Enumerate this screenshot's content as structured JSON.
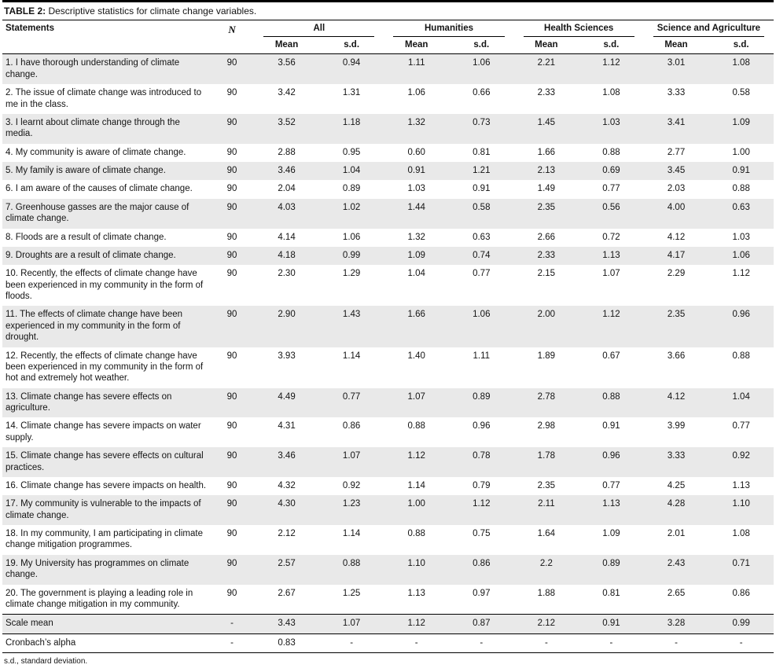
{
  "table": {
    "title_label": "TABLE 2:",
    "title_text": " Descriptive statistics for climate change variables.",
    "col_statements": "Statements",
    "col_n": "N",
    "groups": [
      "All",
      "Humanities",
      "Health Sciences",
      "Science and Agriculture"
    ],
    "sub_mean": "Mean",
    "sub_sd": "s.d.",
    "rows": [
      {
        "statement": "1. I have thorough understanding of climate change.",
        "n": "90",
        "values": [
          "3.56",
          "0.94",
          "1.11",
          "1.06",
          "2.21",
          "1.12",
          "3.01",
          "1.08"
        ]
      },
      {
        "statement": "2. The issue of climate change was introduced to me in the class.",
        "n": "90",
        "values": [
          "3.42",
          "1.31",
          "1.06",
          "0.66",
          "2.33",
          "1.08",
          "3.33",
          "0.58"
        ]
      },
      {
        "statement": "3. I learnt about climate change through the media.",
        "n": "90",
        "values": [
          "3.52",
          "1.18",
          "1.32",
          "0.73",
          "1.45",
          "1.03",
          "3.41",
          "1.09"
        ]
      },
      {
        "statement": "4. My community is aware of climate change.",
        "n": "90",
        "values": [
          "2.88",
          "0.95",
          "0.60",
          "0.81",
          "1.66",
          "0.88",
          "2.77",
          "1.00"
        ]
      },
      {
        "statement": "5. My family is aware of climate change.",
        "n": "90",
        "values": [
          "3.46",
          "1.04",
          "0.91",
          "1.21",
          "2.13",
          "0.69",
          "3.45",
          "0.91"
        ]
      },
      {
        "statement": "6. I am aware of the causes of climate change.",
        "n": "90",
        "values": [
          "2.04",
          "0.89",
          "1.03",
          "0.91",
          "1.49",
          "0.77",
          "2.03",
          "0.88"
        ]
      },
      {
        "statement": "7. Greenhouse gasses are the major cause of climate change.",
        "n": "90",
        "values": [
          "4.03",
          "1.02",
          "1.44",
          "0.58",
          "2.35",
          "0.56",
          "4.00",
          "0.63"
        ]
      },
      {
        "statement": "8. Floods are a result of climate change.",
        "n": "90",
        "values": [
          "4.14",
          "1.06",
          "1.32",
          "0.63",
          "2.66",
          "0.72",
          "4.12",
          "1.03"
        ]
      },
      {
        "statement": "9. Droughts are a result of climate change.",
        "n": "90",
        "values": [
          "4.18",
          "0.99",
          "1.09",
          "0.74",
          "2.33",
          "1.13",
          "4.17",
          "1.06"
        ]
      },
      {
        "statement": "10. Recently, the effects of climate change have been experienced in my community in the form of floods.",
        "n": "90",
        "values": [
          "2.30",
          "1.29",
          "1.04",
          "0.77",
          "2.15",
          "1.07",
          "2.29",
          "1.12"
        ]
      },
      {
        "statement": "11. The effects of climate change have been experienced in my community in the form of drought.",
        "n": "90",
        "values": [
          "2.90",
          "1.43",
          "1.66",
          "1.06",
          "2.00",
          "1.12",
          "2.35",
          "0.96"
        ]
      },
      {
        "statement": "12. Recently, the effects of climate change have been experienced in my community in the form of hot and extremely hot weather.",
        "n": "90",
        "values": [
          "3.93",
          "1.14",
          "1.40",
          "1.11",
          "1.89",
          "0.67",
          "3.66",
          "0.88"
        ]
      },
      {
        "statement": "13. Climate change has severe effects on agriculture.",
        "n": "90",
        "values": [
          "4.49",
          "0.77",
          "1.07",
          "0.89",
          "2.78",
          "0.88",
          "4.12",
          "1.04"
        ]
      },
      {
        "statement": "14. Climate change has severe impacts on water supply.",
        "n": "90",
        "values": [
          "4.31",
          "0.86",
          "0.88",
          "0.96",
          "2.98",
          "0.91",
          "3.99",
          "0.77"
        ]
      },
      {
        "statement": "15. Climate change has severe effects on cultural practices.",
        "n": "90",
        "values": [
          "3.46",
          "1.07",
          "1.12",
          "0.78",
          "1.78",
          "0.96",
          "3.33",
          "0.92"
        ]
      },
      {
        "statement": "16. Climate change has severe impacts on health.",
        "n": "90",
        "values": [
          "4.32",
          "0.92",
          "1.14",
          "0.79",
          "2.35",
          "0.77",
          "4.25",
          "1.13"
        ]
      },
      {
        "statement": "17. My community is vulnerable to the impacts of climate change.",
        "n": "90",
        "values": [
          "4.30",
          "1.23",
          "1.00",
          "1.12",
          "2.11",
          "1.13",
          "4.28",
          "1.10"
        ]
      },
      {
        "statement": "18. In my community, I am participating in climate change mitigation programmes.",
        "n": "90",
        "values": [
          "2.12",
          "1.14",
          "0.88",
          "0.75",
          "1.64",
          "1.09",
          "2.01",
          "1.08"
        ]
      },
      {
        "statement": "19. My University has programmes on climate change.",
        "n": "90",
        "values": [
          "2.57",
          "0.88",
          "1.10",
          "0.86",
          "2.2",
          "0.89",
          "2.43",
          "0.71"
        ]
      },
      {
        "statement": "20. The government is playing a leading role in climate change mitigation in my community.",
        "n": "90",
        "values": [
          "2.67",
          "1.25",
          "1.13",
          "0.97",
          "1.88",
          "0.81",
          "2.65",
          "0.86"
        ]
      }
    ],
    "footer_rows": [
      {
        "statement": "Scale mean",
        "n": "-",
        "values": [
          "3.43",
          "1.07",
          "1.12",
          "0.87",
          "2.12",
          "0.91",
          "3.28",
          "0.99"
        ]
      },
      {
        "statement": "Cronbach’s alpha",
        "n": "-",
        "values": [
          "0.83",
          "-",
          "-",
          "-",
          "-",
          "-",
          "-",
          "-"
        ]
      }
    ],
    "footnote": "s.d., standard deviation."
  }
}
